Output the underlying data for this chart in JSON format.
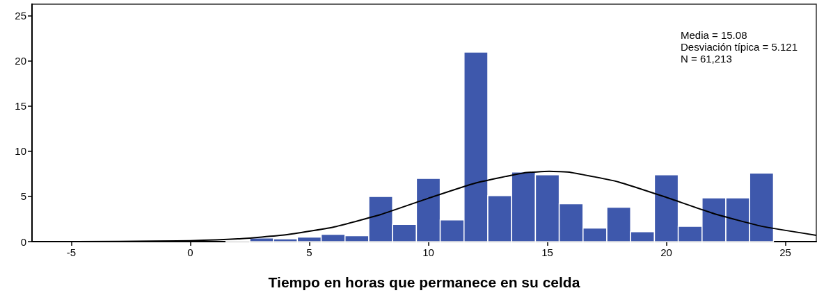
{
  "chart_data": {
    "type": "histogram",
    "xlabel": "Tiempo en horas que permanece en su celda",
    "annotations": [
      "Media = 15.08",
      "Desviación típica = 5.121",
      "N = 61,213"
    ],
    "bins": [
      1.5,
      2.5,
      3.5,
      4.5,
      5.5,
      6.5,
      7.5,
      8.5,
      9.5,
      10.5,
      11.5,
      12.5,
      13.5,
      14.5,
      15.5,
      16.5,
      17.5,
      18.5,
      19.5,
      20.5,
      21.5,
      22.5,
      23.5,
      24.5
    ],
    "values": [
      0.1,
      0.4,
      0.3,
      0.5,
      0.8,
      0.65,
      5.0,
      1.9,
      7.0,
      2.4,
      21.0,
      5.1,
      7.7,
      7.4,
      4.2,
      1.5,
      3.8,
      1.1,
      7.4,
      1.7,
      4.85,
      4.85,
      7.6
    ],
    "color": "#3e58ac",
    "series": [
      {
        "type": "line",
        "color": "#000000",
        "x": [
          -6.6,
          -3,
          0,
          2,
          4,
          6,
          8,
          10,
          12,
          14,
          15.08,
          16,
          18,
          20,
          22,
          24,
          26.3
        ],
        "values": [
          0,
          0.02,
          0.1,
          0.3,
          0.75,
          1.6,
          3.0,
          4.8,
          6.5,
          7.6,
          7.78,
          7.66,
          6.6,
          4.9,
          3.1,
          1.7,
          0.7
        ]
      }
    ],
    "xlim": [
      -6.65,
      26.3
    ],
    "xticks": [
      -5,
      0,
      5,
      10,
      15,
      20,
      25
    ],
    "ylim": [
      0,
      26.3
    ],
    "yticks": [
      0,
      5,
      10,
      15,
      20,
      25
    ],
    "grid": false,
    "marker": "none",
    "line_style": "solid"
  }
}
